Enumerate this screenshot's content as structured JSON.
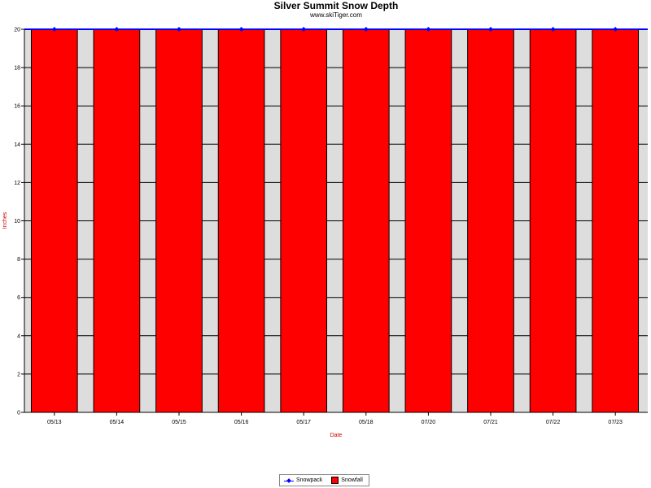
{
  "chart_data": {
    "type": "bar",
    "title": "Silver Summit Snow Depth",
    "subtitle": "www.skiTiger.com",
    "xlabel": "Date",
    "ylabel": "Inches",
    "categories": [
      "05/13",
      "05/14",
      "05/15",
      "05/16",
      "05/17",
      "05/18",
      "07/20",
      "07/21",
      "07/22",
      "07/23"
    ],
    "series": [
      {
        "name": "Snowfall",
        "kind": "bar",
        "color": "#ff0000",
        "values": [
          20,
          20,
          20,
          20,
          20,
          20,
          20,
          20,
          20,
          20
        ]
      },
      {
        "name": "Snowpack",
        "kind": "line",
        "color": "#0000ff",
        "values": [
          20,
          20,
          20,
          20,
          20,
          20,
          20,
          20,
          20,
          20
        ]
      }
    ],
    "ylim": [
      0,
      20
    ],
    "yticks": [
      0,
      2,
      4,
      6,
      8,
      10,
      12,
      14,
      16,
      18,
      20
    ],
    "grid": true,
    "legend_position": "bottom-center",
    "plot_background": "#dddddd"
  }
}
